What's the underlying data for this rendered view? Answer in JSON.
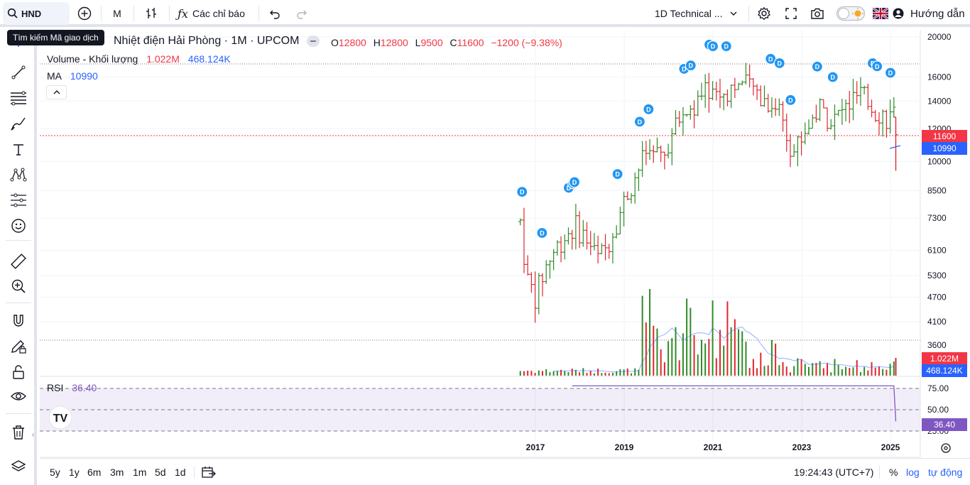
{
  "toolbar": {
    "symbol": "HND",
    "interval": "M",
    "indicators_label": "Các chỉ báo",
    "layout_label": "1D Technical ...",
    "guide_label": "Hướng dẫn",
    "search_tooltip": "Tìm kiếm Mã giao dịch"
  },
  "legend": {
    "title": "Nhiệt điện Hải Phòng · 1M · UPCOM",
    "o_label": "O",
    "o_value": "12800",
    "h_label": "H",
    "h_value": "12800",
    "l_label": "L",
    "l_value": "9500",
    "c_label": "C",
    "c_value": "11600",
    "change": "−1200 (−9.38%)",
    "volume_label": "Volume - Khối lượng",
    "volume_value": "1.022M",
    "volume_ma": "468.124K",
    "ma_label": "MA",
    "ma_value": "10990",
    "rsi_label": "RSI",
    "rsi_value": "36.40"
  },
  "price_badges": {
    "last": "11600",
    "ma": "10990",
    "volume": "1.022M",
    "volume_ma": "468.124K",
    "rsi": "36.40"
  },
  "bottom": {
    "ranges": [
      "5y",
      "1y",
      "6m",
      "3m",
      "1m",
      "5d",
      "1d"
    ],
    "clock": "19:24:43 (UTC+7)",
    "percent": "%",
    "log": "log",
    "auto": "tự động"
  },
  "colors": {
    "up": "#089981",
    "down": "#f23645",
    "bar_up": "#2e8b28",
    "bar_down": "#e0262f",
    "ma": "#2962ff",
    "rsi": "#7e57c2",
    "last_price": "#f23645",
    "dividend": "#2196f3"
  },
  "chart_data": {
    "type": "ohlc",
    "title": "Nhiệt điện Hải Phòng · 1M · UPCOM",
    "price_axis": {
      "scale": "log",
      "ticks": [
        "20000",
        "16000",
        "14000",
        "12000",
        "10000",
        "8500",
        "7300",
        "6100",
        "5300",
        "4700",
        "4100",
        "3600"
      ],
      "tick_values": [
        20000,
        16000,
        14000,
        12000,
        10000,
        8500,
        7300,
        6100,
        5300,
        4700,
        4100,
        3600
      ]
    },
    "rsi_axis": {
      "ticks": [
        "75.00",
        "50.00",
        "25.00"
      ],
      "tick_values": [
        75,
        50,
        25
      ]
    },
    "time_axis": {
      "ticks": [
        "2017",
        "2019",
        "2021",
        "2023",
        "2025"
      ],
      "tick_values": [
        2017,
        2019,
        2021,
        2023,
        2025
      ]
    },
    "last_ohlc": {
      "open": 12800,
      "high": 12800,
      "low": 9500,
      "close": 11600
    },
    "last_volume": 1022000,
    "last_volume_ma": 468124,
    "last_ma": 10990,
    "last_rsi": 36.4,
    "dividend_marker": "D",
    "dividend_times": [
      2016.7,
      2017.15,
      2017.75,
      2017.85,
      2017.88,
      2018.85,
      2019.35,
      2019.55,
      2020.35,
      2020.5,
      2020.92,
      2021.0,
      2021.3,
      2022.3,
      2022.5,
      2022.75,
      2023.35,
      2023.7,
      2024.6,
      2024.7,
      2025.0
    ]
  }
}
